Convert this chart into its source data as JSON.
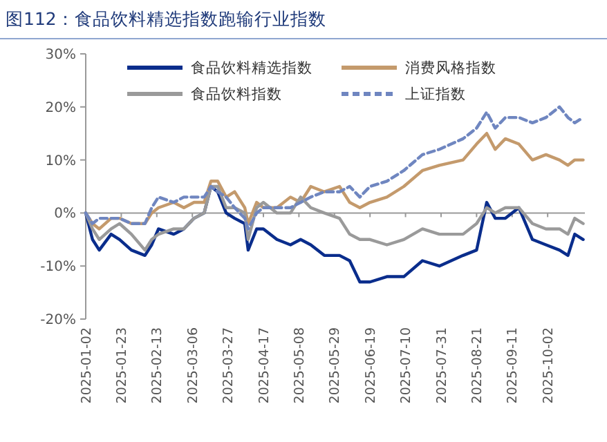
{
  "chart_data": {
    "type": "line",
    "title": "图112：食品饮料精选指数跑输行业指数",
    "x": [
      "2025-01-02",
      "2025-01-06",
      "2025-01-10",
      "2025-01-17",
      "2025-01-22",
      "2025-01-29",
      "2025-02-06",
      "2025-02-10",
      "2025-02-14",
      "2025-02-23",
      "2025-03-01",
      "2025-03-07",
      "2025-03-13",
      "2025-03-17",
      "2025-03-21",
      "2025-03-26",
      "2025-03-31",
      "2025-04-06",
      "2025-04-08",
      "2025-04-13",
      "2025-04-17",
      "2025-04-25",
      "2025-05-03",
      "2025-05-09",
      "2025-05-15",
      "2025-05-23",
      "2025-06-01",
      "2025-06-07",
      "2025-06-13",
      "2025-06-19",
      "2025-06-29",
      "2025-07-09",
      "2025-07-20",
      "2025-07-30",
      "2025-08-13",
      "2025-08-21",
      "2025-08-27",
      "2025-09-01",
      "2025-09-07",
      "2025-09-15",
      "2025-09-23",
      "2025-10-01",
      "2025-10-09",
      "2025-10-14",
      "2025-10-18",
      "2025-10-23"
    ],
    "series": [
      {
        "name": "食品饮料精选指数",
        "color": "#0a2d8c",
        "line_style": "solid",
        "values": [
          0,
          -5,
          -7,
          -4,
          -5,
          -7,
          -8,
          -6,
          -3,
          -4,
          -3,
          -1,
          0,
          5,
          4,
          0,
          -1,
          -2,
          -7,
          -3,
          -3,
          -5,
          -6,
          -5,
          -6,
          -8,
          -8,
          -9,
          -13,
          -13,
          -12,
          -12,
          -9,
          -10,
          -8,
          -7,
          2,
          -1,
          -1,
          1,
          -5,
          -6,
          -7,
          -8,
          -4,
          -5
        ]
      },
      {
        "name": "消费风格指数",
        "color": "#c49a6c",
        "line_style": "solid",
        "values": [
          0,
          -2,
          -3,
          -1,
          -1,
          -2,
          -2,
          0,
          1,
          2,
          1,
          2,
          2,
          6,
          6,
          3,
          4,
          1,
          -2,
          2,
          1,
          1,
          3,
          2,
          5,
          4,
          5,
          2,
          1,
          2,
          3,
          5,
          8,
          9,
          10,
          13,
          15,
          12,
          14,
          13,
          10,
          11,
          10,
          9,
          10,
          10
        ]
      },
      {
        "name": "食品饮料指数",
        "color": "#9a9a9a",
        "line_style": "solid",
        "values": [
          0,
          -3,
          -5,
          -3,
          -2,
          -4,
          -7,
          -5,
          -4,
          -3,
          -3,
          -1,
          0,
          5,
          5,
          1,
          1,
          0,
          -5,
          1,
          2,
          0,
          0,
          3,
          1,
          0,
          -1,
          -4,
          -5,
          -5,
          -6,
          -5,
          -3,
          -4,
          -4,
          -2,
          1,
          0,
          1,
          1,
          -2,
          -3,
          -3,
          -4,
          -1,
          -2
        ]
      },
      {
        "name": "上证指数",
        "color": "#6f86c0",
        "line_style": "dashed",
        "values": [
          0,
          -2,
          -1,
          -1,
          -1,
          -2,
          -2,
          1,
          3,
          2,
          3,
          3,
          3,
          5,
          4,
          3,
          1,
          -1,
          -3,
          0,
          1,
          1,
          1,
          2,
          3,
          4,
          4,
          5,
          3,
          5,
          6,
          8,
          11,
          12,
          14,
          16,
          19,
          16,
          18,
          18,
          17,
          18,
          20,
          18,
          17,
          18
        ]
      }
    ],
    "xlim": [
      "2025-01-02",
      "2025-10-24"
    ],
    "xticks": [
      "2025-01-02",
      "2025-01-23",
      "2025-02-13",
      "2025-03-06",
      "2025-03-27",
      "2025-04-17",
      "2025-05-08",
      "2025-05-29",
      "2025-06-19",
      "2025-07-10",
      "2025-07-31",
      "2025-08-21",
      "2025-09-11",
      "2025-10-02"
    ],
    "ylim": [
      -20,
      30
    ],
    "yticks": [
      {
        "value": -20,
        "label": "-20%"
      },
      {
        "value": -10,
        "label": "-10%"
      },
      {
        "value": 0,
        "label": "0%"
      },
      {
        "value": 10,
        "label": "10%"
      },
      {
        "value": 20,
        "label": "20%"
      },
      {
        "value": 30,
        "label": "30%"
      }
    ],
    "ref_lines": [
      {
        "axis": "y",
        "value": 0,
        "color": "#999999"
      }
    ],
    "legend": "top",
    "marker": "none"
  }
}
